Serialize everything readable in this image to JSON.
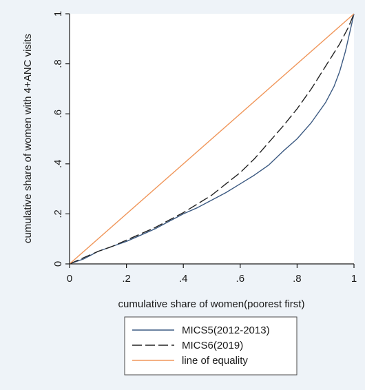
{
  "chart_data": {
    "type": "line",
    "title": "",
    "xlabel": "cumulative share of women(poorest first)",
    "ylabel": "cumulative share of women with 4+ANC visits",
    "xlim": [
      0,
      1
    ],
    "ylim": [
      0,
      1
    ],
    "x_ticks": [
      0,
      0.2,
      0.4,
      0.6,
      0.8,
      1
    ],
    "x_tick_labels": [
      "0",
      ".2",
      ".4",
      ".6",
      ".8",
      "1"
    ],
    "y_ticks": [
      0,
      0.2,
      0.4,
      0.6,
      0.8,
      1
    ],
    "y_tick_labels": [
      "0",
      ".2",
      ".4",
      ".6",
      ".8",
      "1"
    ],
    "grid": false,
    "legend_position": "bottom",
    "series": [
      {
        "name": "MICS5(2012-2013)",
        "color": "#3c5a82",
        "dash": "solid",
        "x": [
          0,
          0.05,
          0.1,
          0.15,
          0.2,
          0.25,
          0.3,
          0.35,
          0.4,
          0.45,
          0.5,
          0.55,
          0.6,
          0.65,
          0.7,
          0.75,
          0.8,
          0.85,
          0.9,
          0.93,
          0.95,
          0.97,
          0.99,
          1
        ],
        "y": [
          0,
          0.02,
          0.05,
          0.07,
          0.09,
          0.115,
          0.14,
          0.17,
          0.2,
          0.225,
          0.255,
          0.285,
          0.32,
          0.355,
          0.395,
          0.45,
          0.5,
          0.565,
          0.645,
          0.71,
          0.77,
          0.85,
          0.95,
          1
        ]
      },
      {
        "name": "MICS6(2019)",
        "color": "#222222",
        "dash": "long-dash",
        "x": [
          0,
          0.05,
          0.1,
          0.15,
          0.2,
          0.25,
          0.3,
          0.35,
          0.4,
          0.45,
          0.5,
          0.55,
          0.6,
          0.65,
          0.7,
          0.75,
          0.8,
          0.85,
          0.9,
          0.95,
          0.98,
          1
        ],
        "y": [
          0,
          0.025,
          0.05,
          0.07,
          0.095,
          0.12,
          0.145,
          0.175,
          0.205,
          0.24,
          0.275,
          0.32,
          0.365,
          0.42,
          0.485,
          0.55,
          0.62,
          0.7,
          0.79,
          0.88,
          0.945,
          1
        ]
      },
      {
        "name": "line of equality",
        "color": "#f0965a",
        "dash": "solid",
        "x": [
          0,
          1
        ],
        "y": [
          0,
          1
        ]
      }
    ]
  }
}
